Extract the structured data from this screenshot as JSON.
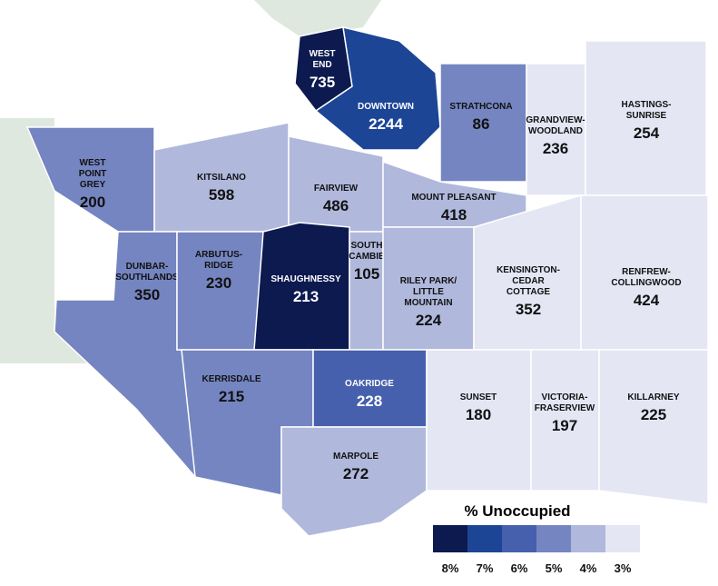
{
  "map": {
    "regions": [
      {
        "name": [
          "WEST",
          "END"
        ],
        "value": 735,
        "color": "#0d1a4f"
      },
      {
        "name": [
          "DOWNTOWN"
        ],
        "value": 2244,
        "color": "#1d4596"
      },
      {
        "name": [
          "STRATHCONA"
        ],
        "value": 86,
        "color": "#7585c1"
      },
      {
        "name": [
          "GRANDVIEW-",
          "WOODLAND"
        ],
        "value": 236,
        "color": "#e4e6f4"
      },
      {
        "name": [
          "HASTINGS-",
          "SUNRISE"
        ],
        "value": 254,
        "color": "#e4e6f4"
      },
      {
        "name": [
          "WEST",
          "POINT",
          "GREY"
        ],
        "value": 200,
        "color": "#7585c1"
      },
      {
        "name": [
          "KITSILANO"
        ],
        "value": 598,
        "color": "#b0b8dc"
      },
      {
        "name": [
          "FAIRVIEW"
        ],
        "value": 486,
        "color": "#b0b8dc"
      },
      {
        "name": [
          "MOUNT PLEASANT"
        ],
        "value": 418,
        "color": "#b0b8dc"
      },
      {
        "name": [
          "DUNBAR-",
          "SOUTHLANDS"
        ],
        "value": 350,
        "color": "#7585c1"
      },
      {
        "name": [
          "ARBUTUS-",
          "RIDGE"
        ],
        "value": 230,
        "color": "#7585c1"
      },
      {
        "name": [
          "SHAUGHNESSY"
        ],
        "value": 213,
        "color": "#0d1a4f"
      },
      {
        "name": [
          "SOUTH",
          "CAMBIE"
        ],
        "value": 105,
        "color": "#b0b8dc"
      },
      {
        "name": [
          "RILEY PARK/",
          "LITTLE",
          "MOUNTAIN"
        ],
        "value": 224,
        "color": "#b0b8dc"
      },
      {
        "name": [
          "KENSINGTON-",
          "CEDAR",
          "COTTAGE"
        ],
        "value": 352,
        "color": "#e4e6f4"
      },
      {
        "name": [
          "RENFREW-",
          "COLLINGWOOD"
        ],
        "value": 424,
        "color": "#e4e6f4"
      },
      {
        "name": [
          "KERRISDALE"
        ],
        "value": 215,
        "color": "#7585c1"
      },
      {
        "name": [
          "OAKRIDGE"
        ],
        "value": 228,
        "color": "#4660ad"
      },
      {
        "name": [
          "MARPOLE"
        ],
        "value": 272,
        "color": "#b0b8dc"
      },
      {
        "name": [
          "SUNSET"
        ],
        "value": 180,
        "color": "#e4e6f4"
      },
      {
        "name": [
          "VICTORIA-",
          "FRASERVIEW"
        ],
        "value": 197,
        "color": "#e4e6f4"
      },
      {
        "name": [
          "KILLARNEY"
        ],
        "value": 225,
        "color": "#e4e6f4"
      }
    ],
    "legend": {
      "title": "% Unoccupied",
      "items": [
        {
          "label": "8%",
          "color": "#0d1a4f"
        },
        {
          "label": "7%",
          "color": "#1d4596"
        },
        {
          "label": "6%",
          "color": "#4660ad"
        },
        {
          "label": "5%",
          "color": "#7585c1"
        },
        {
          "label": "4%",
          "color": "#b0b8dc"
        },
        {
          "label": "3%",
          "color": "#e4e6f4"
        }
      ]
    }
  }
}
